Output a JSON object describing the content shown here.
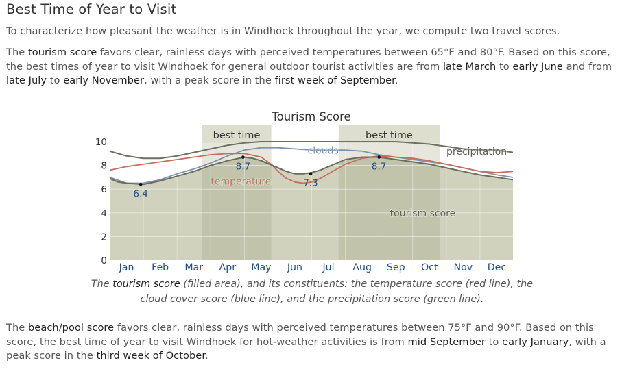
{
  "heading": "Best Time of Year to Visit",
  "intro": "To characterize how pleasant the weather is in Windhoek throughout the year, we compute two travel scores.",
  "tourism_paragraph": {
    "t1": "The ",
    "score_name": "tourism score",
    "t2": " favors clear, rainless days with perceived temperatures between 65°F and 80°F. Based on this score, the best times of year to visit Windhoek for general outdoor tourist activities are from ",
    "from1": "late March",
    "t3": " to ",
    "to1": "early June",
    "t4": " and from ",
    "from2": "late July",
    "t5": " to ",
    "to2": "early November",
    "t6": ", with a peak score in the ",
    "peak": "first week of September",
    "t7": "."
  },
  "caption": {
    "c1": "The ",
    "c_em": "tourism score",
    "c2": " (filled area), and its constituents: the temperature score (red line), the cloud cover score (blue line), and the precipitation score (green line)."
  },
  "beach_paragraph": {
    "t1": "The ",
    "score_name": "beach/pool score",
    "t2": " favors clear, rainless days with perceived temperatures between 75°F and 90°F. Based on this score, the best time of year to visit Windhoek for hot-weather activities is from ",
    "from": "mid September",
    "t3": " to ",
    "to": "early January",
    "t4": ", with a peak score in the ",
    "peak": "third week of October",
    "t5": "."
  },
  "chart_data": {
    "type": "area",
    "title": "Tourism Score",
    "x_labels": [
      "Jan",
      "Feb",
      "Mar",
      "Apr",
      "May",
      "Jun",
      "Jul",
      "Aug",
      "Sep",
      "Oct",
      "Nov",
      "Dec"
    ],
    "y_ticks": [
      "0",
      "2",
      "4",
      "6",
      "8",
      "10"
    ],
    "ylim": [
      0,
      10
    ],
    "colors": {
      "fill": "#c9caB3",
      "band": "#b9baa1",
      "tourism": "#6b6b5e",
      "temperature": "#c46f5e",
      "clouds": "#7b93ae",
      "precipitation": "#6e6e62",
      "grid": "#ffffff",
      "month_label": "#1f4e8c"
    },
    "best_time": [
      {
        "label": "best time",
        "start_month": 3.74,
        "end_month": 5.8
      },
      {
        "label": "best time",
        "start_month": 7.8,
        "end_month": 10.8
      }
    ],
    "series": [
      {
        "key": "tourism",
        "name": "tourism score",
        "x": [
          1,
          1.25,
          1.5,
          2,
          2.5,
          3,
          3.5,
          4,
          4.5,
          5,
          5.25,
          5.5,
          6,
          6.25,
          6.5,
          6.75,
          7,
          7.25,
          7.5,
          8,
          8.5,
          9,
          9.25,
          9.5,
          10,
          10.5,
          11,
          11.5,
          12,
          12.5,
          12.98
        ],
        "y": [
          6.9,
          6.6,
          6.5,
          6.4,
          6.7,
          7.1,
          7.5,
          8.0,
          8.4,
          8.7,
          8.6,
          8.4,
          7.8,
          7.5,
          7.3,
          7.3,
          7.4,
          7.6,
          7.9,
          8.5,
          8.7,
          8.7,
          8.6,
          8.5,
          8.3,
          8.1,
          7.8,
          7.5,
          7.2,
          7.0,
          6.8
        ]
      },
      {
        "key": "temperature",
        "name": "temperature",
        "x": [
          1,
          1.5,
          2,
          2.5,
          3,
          3.5,
          4,
          4.5,
          5,
          5.5,
          5.8,
          6,
          6.25,
          6.5,
          6.75,
          7,
          7.25,
          7.5,
          8,
          8.5,
          9,
          9.5,
          10,
          10.5,
          11,
          11.5,
          12,
          12.5,
          12.98
        ],
        "y": [
          7.6,
          7.9,
          8.1,
          8.3,
          8.5,
          8.7,
          8.9,
          9.0,
          9.0,
          8.7,
          8.1,
          7.5,
          6.9,
          6.6,
          6.5,
          6.6,
          6.9,
          7.3,
          8.1,
          8.6,
          8.8,
          8.7,
          8.6,
          8.4,
          8.1,
          7.8,
          7.5,
          7.4,
          7.5
        ]
      },
      {
        "key": "clouds",
        "name": "clouds",
        "x": [
          1,
          1.5,
          2,
          2.5,
          3,
          3.5,
          4,
          4.5,
          5,
          5.5,
          6,
          6.5,
          7,
          7.5,
          8,
          8.5,
          9,
          9.5,
          10,
          10.5,
          11,
          11.5,
          12,
          12.5,
          12.98
        ],
        "y": [
          7.0,
          6.5,
          6.5,
          6.8,
          7.3,
          7.7,
          8.2,
          8.8,
          9.3,
          9.5,
          9.5,
          9.4,
          9.3,
          9.3,
          9.3,
          9.2,
          8.9,
          8.7,
          8.5,
          8.3,
          8.1,
          7.8,
          7.5,
          7.2,
          7.0
        ]
      },
      {
        "key": "precipitation",
        "name": "precipitation",
        "x": [
          1,
          1.25,
          1.5,
          2,
          2.5,
          3,
          3.5,
          4,
          4.5,
          5,
          5.5,
          6,
          6.5,
          7,
          7.5,
          8,
          8.5,
          9,
          9.5,
          10,
          10.5,
          11,
          11.5,
          12,
          12.5,
          12.98
        ],
        "y": [
          9.2,
          9.0,
          8.8,
          8.6,
          8.6,
          8.8,
          9.1,
          9.4,
          9.7,
          9.9,
          10.0,
          10.0,
          10.0,
          10.0,
          10.0,
          10.0,
          10.0,
          10.0,
          10.0,
          9.9,
          9.8,
          9.6,
          9.4,
          9.3,
          9.3,
          9.1
        ]
      }
    ],
    "series_labels": [
      {
        "text": "clouds",
        "series": "clouds"
      },
      {
        "text": "precipitation",
        "series": "precipitation"
      },
      {
        "text": "temperature",
        "series": "temperature"
      },
      {
        "text": "tourism score",
        "series": "tourism"
      }
    ],
    "point_labels": [
      {
        "x": 1.92,
        "y": 6.4,
        "label": "6.4"
      },
      {
        "x": 4.96,
        "y": 8.7,
        "label": "8.7"
      },
      {
        "x": 6.97,
        "y": 7.3,
        "label": "7.3"
      },
      {
        "x": 9.0,
        "y": 8.7,
        "label": "8.7"
      }
    ]
  }
}
